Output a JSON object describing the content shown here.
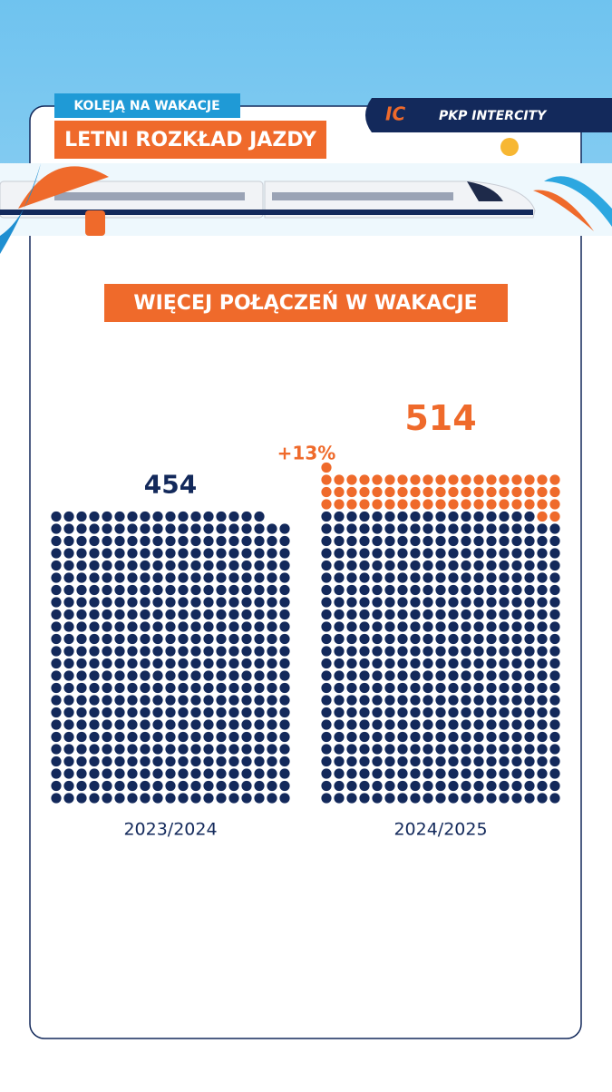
{
  "header": {
    "tag": "KOLEJĄ NA WAKACJE",
    "title": "LETNI ROZKŁAD JAZDY",
    "brand": "PKP INTERCITY"
  },
  "chart_data": {
    "type": "waffle",
    "title": "WIĘCEJ POŁĄCZEŃ W WAKACJE",
    "categories": [
      "2023/2024",
      "2024/2025"
    ],
    "values": [
      454,
      514
    ],
    "colors": [
      "#13295b",
      "#ef6a2b"
    ],
    "annotation": "+13%"
  }
}
